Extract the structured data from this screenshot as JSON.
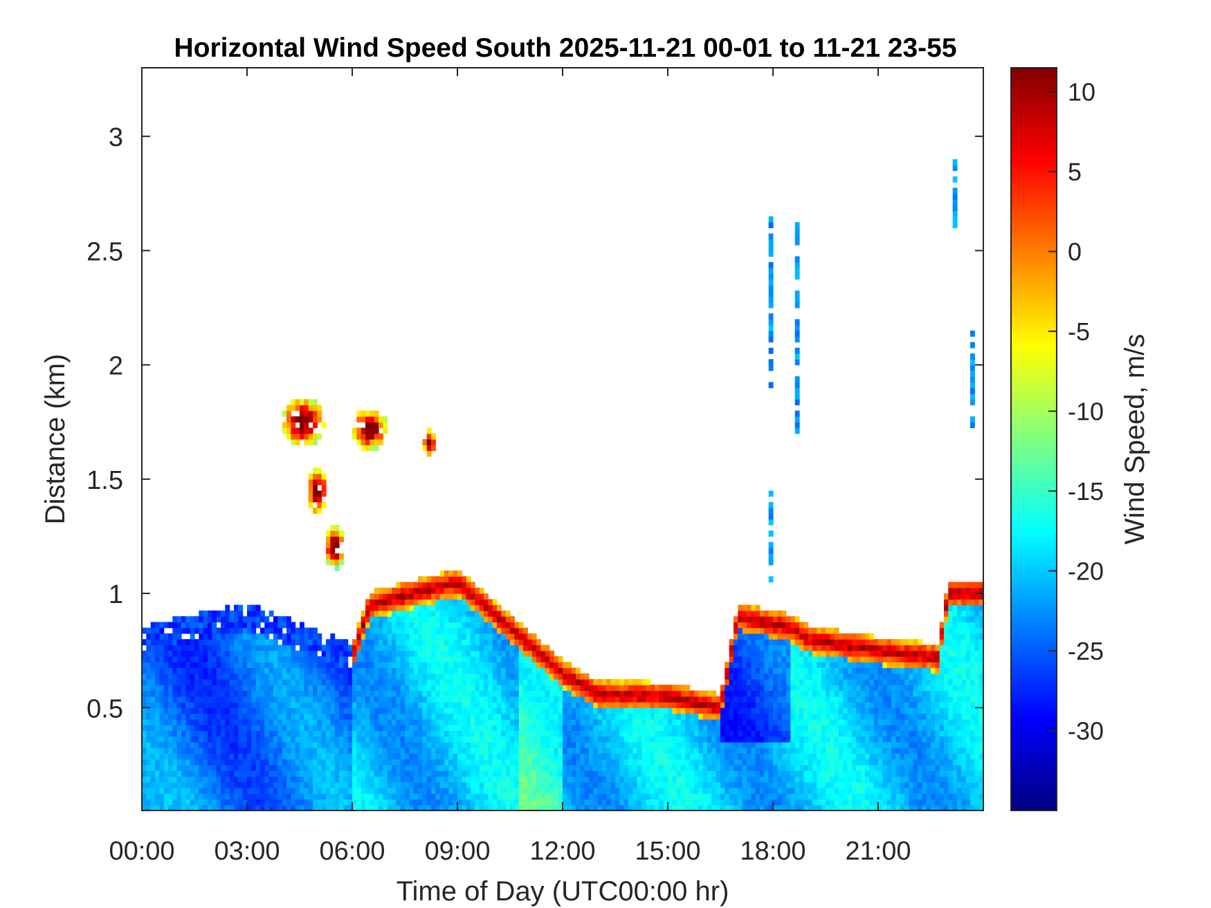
{
  "chart_data": {
    "type": "heatmap",
    "title": "Horizontal Wind Speed South 2025-11-21 00-01 to 11-21 23-55",
    "xlabel": "Time of Day (UTC00:00 hr)",
    "ylabel": "Distance (km)",
    "colorbar_label": "Wind Speed, m/s",
    "xlim": [
      0,
      24
    ],
    "ylim": [
      0.05,
      3.3
    ],
    "clim": [
      -35,
      11.5
    ],
    "x_ticks": [
      0,
      3,
      6,
      9,
      12,
      15,
      18,
      21
    ],
    "x_tick_labels": [
      "00:00",
      "03:00",
      "06:00",
      "09:00",
      "12:00",
      "15:00",
      "18:00",
      "21:00"
    ],
    "y_ticks": [
      0.5,
      1,
      1.5,
      2,
      2.5,
      3
    ],
    "y_tick_labels": [
      "0.5",
      "1",
      "1.5",
      "2",
      "2.5",
      "3"
    ],
    "colorbar_ticks": [
      10,
      5,
      0,
      -5,
      -10,
      -15,
      -20,
      -25,
      -30
    ],
    "colorbar_tick_labels": [
      "10",
      "5",
      "0",
      "-5",
      "-10",
      "-15",
      "-20",
      "-25",
      "-30"
    ],
    "colormap": "jet",
    "grid": false,
    "features": [
      {
        "label": "",
        "type": "boundary_layer_top_km",
        "x": [
          0,
          3,
          6,
          6.5,
          9,
          10.5,
          12,
          13,
          15,
          16.5,
          17,
          18.5,
          19,
          21,
          22.7,
          23,
          24
        ],
        "y": [
          0.8,
          0.9,
          0.72,
          0.95,
          1.05,
          0.85,
          0.65,
          0.56,
          0.55,
          0.5,
          0.9,
          0.85,
          0.8,
          0.75,
          0.72,
          1.0,
          1.0
        ]
      },
      {
        "label": "",
        "type": "jet_core_max_speed_m_s",
        "value": 10
      },
      {
        "label": "",
        "type": "background_speed_m_s",
        "value": -20
      }
    ]
  }
}
